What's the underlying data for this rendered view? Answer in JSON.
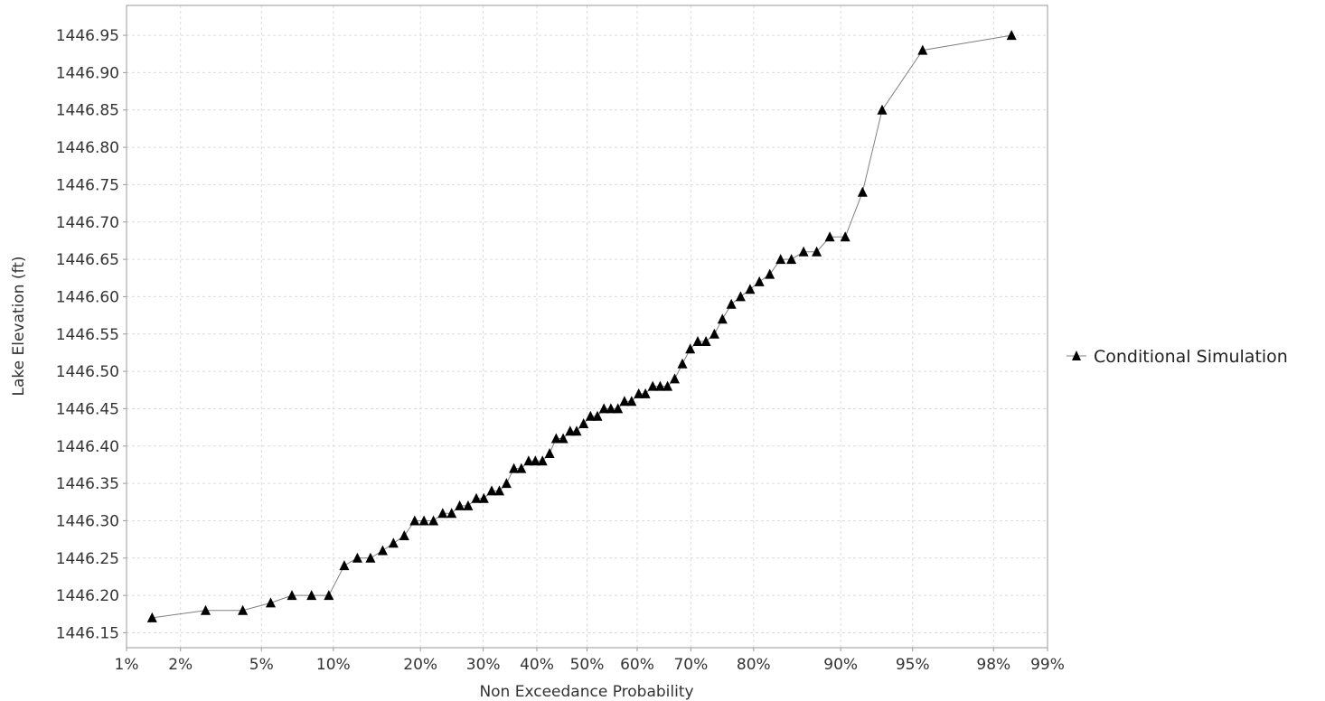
{
  "chart_data": {
    "type": "line",
    "xlabel": "Non Exceedance Probability",
    "ylabel": "Lake Elevation (ft)",
    "x_scale": "normal-probability",
    "xlim": [
      1,
      99
    ],
    "ylim": [
      1446.13,
      1446.99
    ],
    "x_ticks": [
      1,
      2,
      5,
      10,
      20,
      30,
      40,
      50,
      60,
      70,
      80,
      90,
      95,
      98,
      99
    ],
    "x_tick_labels": [
      "1%",
      "2%",
      "5%",
      "10%",
      "20%",
      "30%",
      "40%",
      "50%",
      "60%",
      "70%",
      "80%",
      "90%",
      "95%",
      "98%",
      "99%"
    ],
    "y_ticks": [
      1446.15,
      1446.2,
      1446.25,
      1446.3,
      1446.35,
      1446.4,
      1446.45,
      1446.5,
      1446.55,
      1446.6,
      1446.65,
      1446.7,
      1446.75,
      1446.8,
      1446.85,
      1446.9,
      1446.95
    ],
    "y_tick_labels": [
      "1446.15",
      "1446.20",
      "1446.25",
      "1446.30",
      "1446.35",
      "1446.40",
      "1446.45",
      "1446.50",
      "1446.55",
      "1446.60",
      "1446.65",
      "1446.70",
      "1446.75",
      "1446.80",
      "1446.85",
      "1446.90",
      "1446.95"
    ],
    "grid": true,
    "legend_position": "right",
    "series": [
      {
        "name": "Conditional Simulation",
        "color": "#000000",
        "line_color": "#808080",
        "marker": "triangle",
        "points": [
          [
            1.4,
            1446.17
          ],
          [
            2.7,
            1446.18
          ],
          [
            4.1,
            1446.18
          ],
          [
            5.5,
            1446.19
          ],
          [
            6.8,
            1446.2
          ],
          [
            8.2,
            1446.2
          ],
          [
            9.6,
            1446.2
          ],
          [
            11.0,
            1446.24
          ],
          [
            12.3,
            1446.25
          ],
          [
            13.7,
            1446.25
          ],
          [
            15.1,
            1446.26
          ],
          [
            16.4,
            1446.27
          ],
          [
            17.8,
            1446.28
          ],
          [
            19.2,
            1446.3
          ],
          [
            20.5,
            1446.3
          ],
          [
            21.9,
            1446.3
          ],
          [
            23.3,
            1446.31
          ],
          [
            24.7,
            1446.31
          ],
          [
            26.0,
            1446.32
          ],
          [
            27.4,
            1446.32
          ],
          [
            28.8,
            1446.33
          ],
          [
            30.1,
            1446.33
          ],
          [
            31.5,
            1446.34
          ],
          [
            32.9,
            1446.34
          ],
          [
            34.2,
            1446.35
          ],
          [
            35.6,
            1446.37
          ],
          [
            37.0,
            1446.37
          ],
          [
            38.4,
            1446.38
          ],
          [
            39.7,
            1446.38
          ],
          [
            41.1,
            1446.38
          ],
          [
            42.5,
            1446.39
          ],
          [
            43.8,
            1446.41
          ],
          [
            45.2,
            1446.41
          ],
          [
            46.6,
            1446.42
          ],
          [
            47.9,
            1446.42
          ],
          [
            49.3,
            1446.43
          ],
          [
            50.7,
            1446.44
          ],
          [
            52.1,
            1446.44
          ],
          [
            53.4,
            1446.45
          ],
          [
            54.8,
            1446.45
          ],
          [
            56.2,
            1446.45
          ],
          [
            57.5,
            1446.46
          ],
          [
            58.9,
            1446.46
          ],
          [
            60.3,
            1446.47
          ],
          [
            61.6,
            1446.47
          ],
          [
            63.0,
            1446.48
          ],
          [
            64.4,
            1446.48
          ],
          [
            65.8,
            1446.48
          ],
          [
            67.1,
            1446.49
          ],
          [
            68.5,
            1446.51
          ],
          [
            69.9,
            1446.53
          ],
          [
            71.2,
            1446.54
          ],
          [
            72.6,
            1446.54
          ],
          [
            74.0,
            1446.55
          ],
          [
            75.3,
            1446.57
          ],
          [
            76.7,
            1446.59
          ],
          [
            78.1,
            1446.6
          ],
          [
            79.5,
            1446.61
          ],
          [
            80.8,
            1446.62
          ],
          [
            82.2,
            1446.63
          ],
          [
            83.6,
            1446.65
          ],
          [
            84.9,
            1446.65
          ],
          [
            86.3,
            1446.66
          ],
          [
            87.7,
            1446.66
          ],
          [
            89.0,
            1446.68
          ],
          [
            90.4,
            1446.68
          ],
          [
            91.8,
            1446.74
          ],
          [
            93.2,
            1446.85
          ],
          [
            95.5,
            1446.93
          ],
          [
            98.4,
            1446.95
          ]
        ]
      }
    ]
  }
}
